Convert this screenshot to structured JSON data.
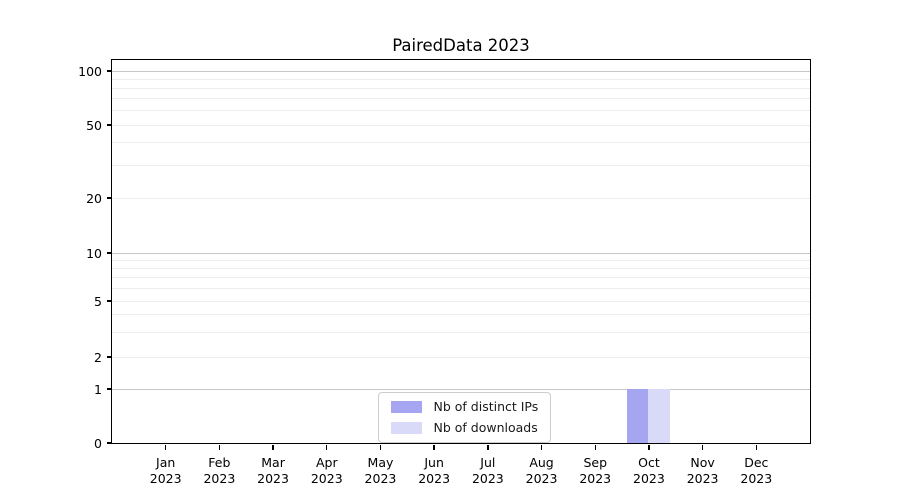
{
  "chart_data": {
    "type": "bar",
    "title": "PairedData 2023",
    "categories": [
      "Jan 2023",
      "Feb 2023",
      "Mar 2023",
      "Apr 2023",
      "May 2023",
      "Jun 2023",
      "Jul 2023",
      "Aug 2023",
      "Sep 2023",
      "Oct 2023",
      "Nov 2023",
      "Dec 2023"
    ],
    "x_tick_months": [
      "Jan",
      "Feb",
      "Mar",
      "Apr",
      "May",
      "Jun",
      "Jul",
      "Aug",
      "Sep",
      "Oct",
      "Nov",
      "Dec"
    ],
    "x_tick_year": "2023",
    "series": [
      {
        "name": "Nb of distinct IPs",
        "color": "#a5a5f2",
        "values": [
          0,
          0,
          0,
          0,
          0,
          0,
          0,
          0,
          0,
          1,
          0,
          0
        ]
      },
      {
        "name": "Nb of downloads",
        "color": "#d9d9f8",
        "values": [
          0,
          0,
          0,
          0,
          0,
          0,
          0,
          0,
          0,
          1,
          0,
          0
        ]
      }
    ],
    "yscale": "symlog",
    "ylim": [
      0,
      110
    ],
    "yticks": [
      0,
      1,
      2,
      5,
      10,
      20,
      50,
      100
    ],
    "grid": {
      "orientation": "horizontal",
      "major_values": [
        1,
        10,
        100
      ],
      "minor_values": [
        2,
        3,
        4,
        5,
        6,
        7,
        8,
        9,
        20,
        30,
        40,
        50,
        60,
        70,
        80,
        90
      ],
      "major_color": "#c6c6c6",
      "minor_color": "#ededed"
    },
    "legend": {
      "position": "lower-center",
      "entries": [
        "Nb of distinct IPs",
        "Nb of downloads"
      ]
    },
    "colors": {
      "background": "#ffffff",
      "spine": "#000000",
      "text": "#000000"
    }
  }
}
